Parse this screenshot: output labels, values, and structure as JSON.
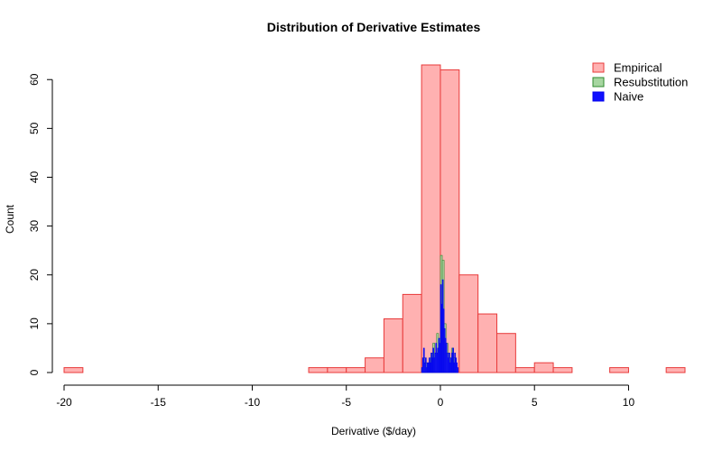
{
  "chart_data": {
    "type": "histogram",
    "title": "Distribution of Derivative Estimates",
    "xlabel": "Derivative ($/day)",
    "ylabel": "Count",
    "xlim": [
      -20,
      13
    ],
    "ylim": [
      0,
      63
    ],
    "x_ticks": [
      -20,
      -15,
      -10,
      -5,
      0,
      5,
      10
    ],
    "y_ticks": [
      0,
      10,
      20,
      30,
      40,
      50,
      60
    ],
    "legend_position": "top-right",
    "series": [
      {
        "name": "Empirical",
        "fill": "#ffb1b1",
        "stroke": "#e83a3a",
        "bins": [
          [
            -20,
            -19,
            1
          ],
          [
            -19,
            -18,
            0
          ],
          [
            -18,
            -17,
            0
          ],
          [
            -17,
            -16,
            0
          ],
          [
            -16,
            -15,
            0
          ],
          [
            -15,
            -14,
            0
          ],
          [
            -14,
            -13,
            0
          ],
          [
            -13,
            -12,
            0
          ],
          [
            -12,
            -11,
            0
          ],
          [
            -11,
            -10,
            0
          ],
          [
            -10,
            -9,
            0
          ],
          [
            -9,
            -8,
            0
          ],
          [
            -8,
            -7,
            0
          ],
          [
            -7,
            -6,
            1
          ],
          [
            -6,
            -5,
            1
          ],
          [
            -5,
            -4,
            1
          ],
          [
            -4,
            -3,
            3
          ],
          [
            -3,
            -2,
            11
          ],
          [
            -2,
            -1,
            16
          ],
          [
            -1,
            0,
            63
          ],
          [
            0,
            1,
            62
          ],
          [
            1,
            2,
            20
          ],
          [
            2,
            3,
            12
          ],
          [
            3,
            4,
            8
          ],
          [
            4,
            5,
            1
          ],
          [
            5,
            6,
            2
          ],
          [
            6,
            7,
            1
          ],
          [
            7,
            8,
            0
          ],
          [
            8,
            9,
            0
          ],
          [
            9,
            10,
            1
          ],
          [
            10,
            11,
            0
          ],
          [
            11,
            12,
            0
          ],
          [
            12,
            13,
            1
          ]
        ]
      },
      {
        "name": "Resubstitution",
        "fill": "#a6d6a0",
        "stroke": "#2e8a2e",
        "bins": [
          [
            -1.0,
            -0.9,
            1
          ],
          [
            -0.9,
            -0.8,
            3
          ],
          [
            -0.8,
            -0.7,
            2
          ],
          [
            -0.7,
            -0.6,
            1
          ],
          [
            -0.6,
            -0.5,
            3
          ],
          [
            -0.5,
            -0.4,
            4
          ],
          [
            -0.4,
            -0.3,
            6
          ],
          [
            -0.3,
            -0.2,
            4
          ],
          [
            -0.2,
            -0.1,
            8
          ],
          [
            -0.1,
            0.0,
            7
          ],
          [
            0.0,
            0.1,
            24
          ],
          [
            0.1,
            0.2,
            23
          ],
          [
            0.2,
            0.3,
            10
          ],
          [
            0.3,
            0.4,
            6
          ],
          [
            0.4,
            0.5,
            4
          ],
          [
            0.5,
            0.6,
            3
          ],
          [
            0.6,
            0.7,
            5
          ],
          [
            0.7,
            0.8,
            3
          ],
          [
            0.8,
            0.9,
            1
          ]
        ]
      },
      {
        "name": "Naive",
        "fill": "#1010ff",
        "stroke": "#0000ee",
        "bins": [
          [
            -1.0,
            -0.95,
            1
          ],
          [
            -0.95,
            -0.9,
            3
          ],
          [
            -0.9,
            -0.85,
            5
          ],
          [
            -0.85,
            -0.8,
            2
          ],
          [
            -0.8,
            -0.75,
            3
          ],
          [
            -0.75,
            -0.7,
            1
          ],
          [
            -0.7,
            -0.65,
            2
          ],
          [
            -0.65,
            -0.6,
            2
          ],
          [
            -0.6,
            -0.55,
            3
          ],
          [
            -0.55,
            -0.5,
            2
          ],
          [
            -0.5,
            -0.45,
            4
          ],
          [
            -0.45,
            -0.4,
            3
          ],
          [
            -0.4,
            -0.35,
            5
          ],
          [
            -0.35,
            -0.3,
            3
          ],
          [
            -0.3,
            -0.25,
            4
          ],
          [
            -0.25,
            -0.2,
            6
          ],
          [
            -0.2,
            -0.15,
            4
          ],
          [
            -0.15,
            -0.1,
            5
          ],
          [
            -0.1,
            -0.05,
            7
          ],
          [
            -0.05,
            0.0,
            6
          ],
          [
            0.0,
            0.05,
            18
          ],
          [
            0.05,
            0.1,
            14
          ],
          [
            0.1,
            0.15,
            19
          ],
          [
            0.15,
            0.2,
            13
          ],
          [
            0.2,
            0.25,
            9
          ],
          [
            0.25,
            0.3,
            7
          ],
          [
            0.3,
            0.35,
            6
          ],
          [
            0.35,
            0.4,
            4
          ],
          [
            0.4,
            0.45,
            3
          ],
          [
            0.45,
            0.5,
            4
          ],
          [
            0.5,
            0.55,
            2
          ],
          [
            0.55,
            0.6,
            3
          ],
          [
            0.6,
            0.65,
            4
          ],
          [
            0.65,
            0.7,
            5
          ],
          [
            0.7,
            0.75,
            2
          ],
          [
            0.75,
            0.8,
            4
          ],
          [
            0.8,
            0.85,
            3
          ],
          [
            0.85,
            0.9,
            2
          ],
          [
            0.9,
            0.95,
            1
          ]
        ]
      }
    ]
  }
}
